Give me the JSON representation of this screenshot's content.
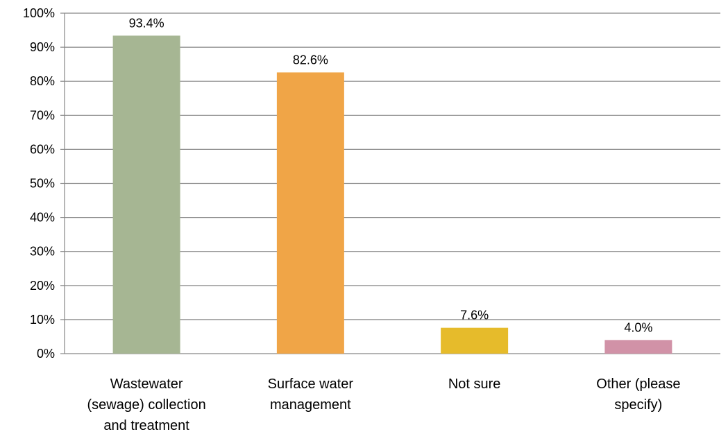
{
  "chart_data": {
    "type": "bar",
    "categories": [
      [
        "Wastewater",
        "(sewage) collection",
        "and treatment"
      ],
      [
        "Surface water",
        "management"
      ],
      [
        "Not sure"
      ],
      [
        "Other (please",
        "specify)"
      ]
    ],
    "values": [
      93.4,
      82.6,
      7.6,
      4.0
    ],
    "data_labels": [
      "93.4%",
      "82.6%",
      "7.6%",
      "4.0%"
    ],
    "colors": [
      "#a6b693",
      "#f0a547",
      "#e6bb2b",
      "#d192a7"
    ],
    "ylim": [
      0,
      100
    ],
    "yticks": [
      0,
      10,
      20,
      30,
      40,
      50,
      60,
      70,
      80,
      90,
      100
    ],
    "ytick_labels": [
      "0%",
      "10%",
      "20%",
      "30%",
      "40%",
      "50%",
      "60%",
      "70%",
      "80%",
      "90%",
      "100%"
    ],
    "grid": true,
    "gridline_color": "#878787",
    "title": "",
    "xlabel": "",
    "ylabel": ""
  }
}
